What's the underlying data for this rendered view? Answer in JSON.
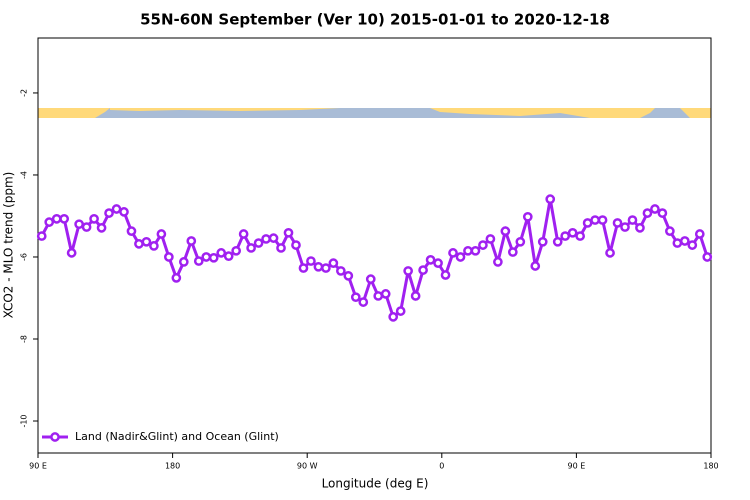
{
  "chart_data": {
    "type": "line",
    "title": "55N-60N September (Ver 10)   2015-01-01 to 2020-12-18",
    "x_label": "Longitude (deg E)",
    "y_label": "XCO2 - MLO trend (ppm)",
    "x": [
      92.5,
      97.5,
      102.5,
      107.5,
      112.5,
      117.5,
      122.5,
      127.5,
      132.5,
      137.5,
      142.5,
      147.5,
      152.5,
      157.5,
      162.5,
      167.5,
      172.5,
      177.5,
      182.5,
      187.5,
      192.5,
      197.5,
      202.5,
      207.5,
      212.5,
      217.5,
      222.5,
      227.5,
      232.5,
      237.5,
      242.5,
      247.5,
      252.5,
      257.5,
      262.5,
      267.5,
      272.5,
      277.5,
      282.5,
      287.5,
      292.5,
      297.5,
      302.5,
      307.5,
      312.5,
      317.5,
      322.5,
      327.5,
      332.5,
      337.5,
      342.5,
      347.5,
      352.5,
      357.5,
      362.5,
      367.5,
      372.5,
      377.5,
      382.5,
      387.5,
      392.5,
      397.5,
      402.5,
      407.5,
      412.5,
      417.5,
      422.5,
      427.5,
      432.5,
      437.5,
      442.5,
      447.5,
      452.5,
      457.5,
      462.5,
      467.5,
      472.5,
      477.5,
      482.5,
      487.5,
      492.5,
      497.5,
      502.5,
      507.5,
      512.5,
      517.5,
      522.5,
      527.5,
      532.5,
      537.5
    ],
    "series": [
      {
        "name": "Land (Nadir&Glint) and Ocean (Glint)",
        "color": "#a020f0",
        "values": [
          -5.49,
          -5.15,
          -5.07,
          -5.07,
          -5.9,
          -5.2,
          -5.27,
          -5.07,
          -5.29,
          -4.93,
          -4.83,
          -4.9,
          -5.37,
          -5.68,
          -5.63,
          -5.73,
          -5.44,
          -6.0,
          -6.51,
          -6.12,
          -5.61,
          -6.1,
          -6.0,
          -6.02,
          -5.9,
          -5.98,
          -5.85,
          -5.44,
          -5.78,
          -5.66,
          -5.56,
          -5.54,
          -5.78,
          -5.41,
          -5.71,
          -6.27,
          -6.1,
          -6.24,
          -6.27,
          -6.15,
          -6.34,
          -6.46,
          -6.98,
          -7.1,
          -6.54,
          -6.95,
          -6.9,
          -7.46,
          -7.32,
          -6.34,
          -6.95,
          -6.32,
          -6.07,
          -6.15,
          -6.44,
          -5.9,
          -6.0,
          -5.85,
          -5.85,
          -5.71,
          -5.56,
          -6.12,
          -5.37,
          -5.88,
          -5.63,
          -5.02,
          -6.22,
          -5.63,
          -4.59,
          -5.63,
          -5.49,
          -5.41,
          -5.49,
          -5.17,
          -5.1,
          -5.1,
          -5.9,
          -5.17,
          -5.27,
          -5.1,
          -5.29,
          -4.93,
          -4.83,
          -4.93,
          -5.37,
          -5.66,
          -5.61,
          -5.71,
          -5.44,
          -6.0
        ]
      }
    ],
    "xlim": [
      90,
      540
    ],
    "xticks": [
      {
        "value": 90,
        "label": "90 E"
      },
      {
        "value": 180,
        "label": "180"
      },
      {
        "value": 270,
        "label": "90 W"
      },
      {
        "value": 360,
        "label": "0"
      },
      {
        "value": 450,
        "label": "90 E"
      },
      {
        "value": 540,
        "label": "180"
      }
    ],
    "ylim": [
      -10.78,
      -0.66
    ],
    "yticks": [
      -2,
      -4,
      -6,
      -8,
      -10
    ],
    "legend": "bottom-left"
  }
}
